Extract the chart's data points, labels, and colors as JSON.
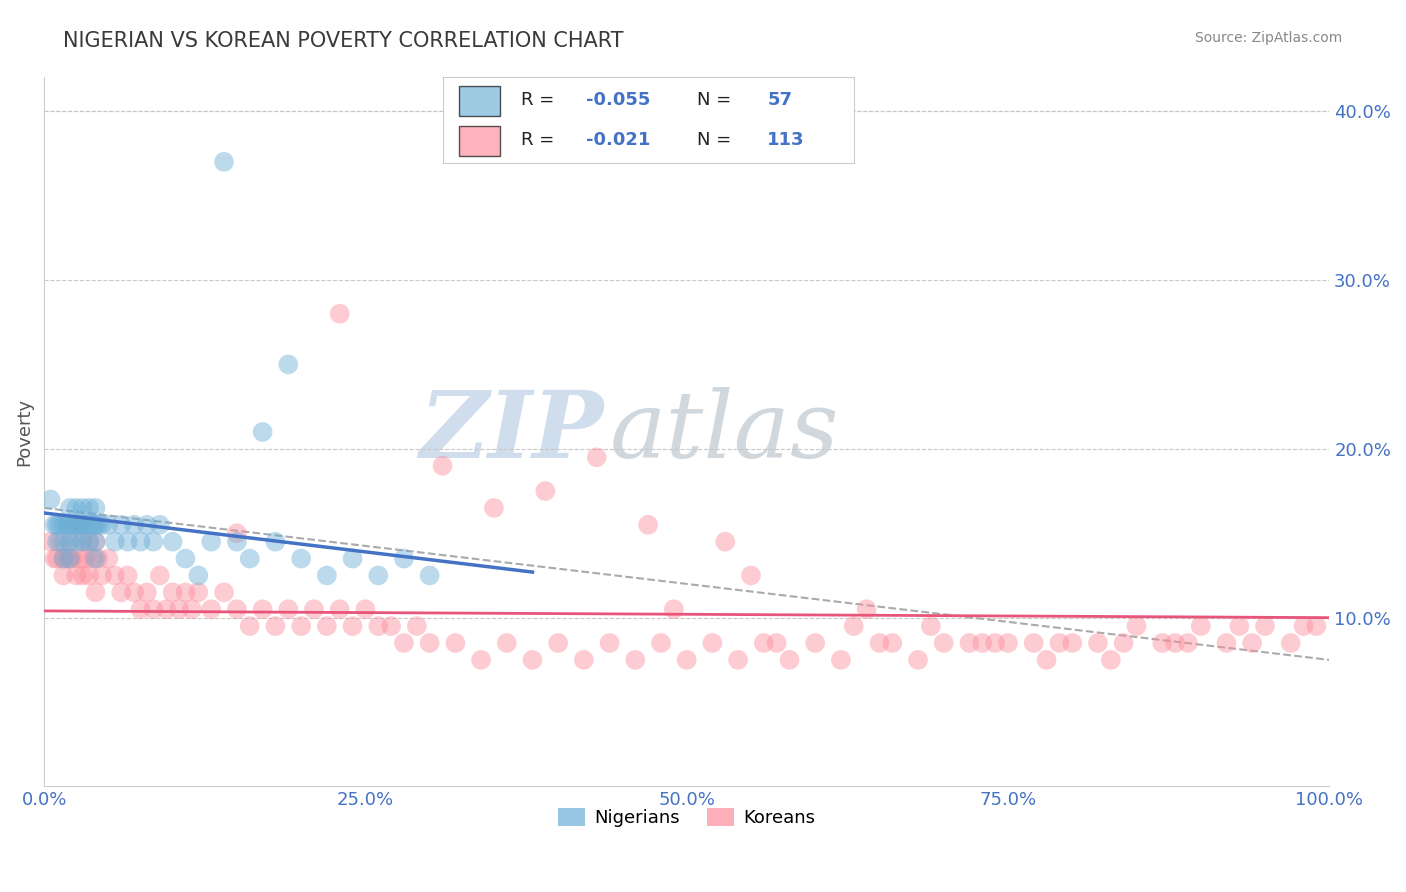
{
  "title": "NIGERIAN VS KOREAN POVERTY CORRELATION CHART",
  "source_text": "Source: ZipAtlas.com",
  "ylabel": "Poverty",
  "xlim": [
    0,
    1.0
  ],
  "ylim": [
    0.0,
    0.42
  ],
  "yticks": [
    0.1,
    0.2,
    0.3,
    0.4
  ],
  "ytick_labels": [
    "10.0%",
    "20.0%",
    "30.0%",
    "40.0%"
  ],
  "xticks": [
    0.0,
    0.25,
    0.5,
    0.75,
    1.0
  ],
  "xtick_labels": [
    "0.0%",
    "25.0%",
    "50.0%",
    "75.0%",
    "100.0%"
  ],
  "nigerian_color": "#6baed6",
  "korean_color": "#fc8d9c",
  "nigerian_R": -0.055,
  "nigerian_N": 57,
  "korean_R": -0.021,
  "korean_N": 113,
  "background_color": "#ffffff",
  "grid_color": "#c8c8c8",
  "watermark_zip": "ZIP",
  "watermark_atlas": "atlas",
  "nigerian_line_color": "#4472c4",
  "korean_line_color": "#e8557a",
  "dashed_line_color": "#aaaaaa",
  "tick_label_color": "#4472c4",
  "title_color": "#3a3a3a",
  "source_color": "#888888",
  "ylabel_color": "#555555",
  "nigerian_x": [
    0.005,
    0.008,
    0.01,
    0.01,
    0.012,
    0.015,
    0.015,
    0.015,
    0.018,
    0.02,
    0.02,
    0.02,
    0.02,
    0.022,
    0.025,
    0.025,
    0.025,
    0.028,
    0.03,
    0.03,
    0.03,
    0.032,
    0.035,
    0.035,
    0.035,
    0.038,
    0.04,
    0.04,
    0.04,
    0.04,
    0.042,
    0.045,
    0.05,
    0.055,
    0.06,
    0.065,
    0.07,
    0.075,
    0.08,
    0.085,
    0.09,
    0.1,
    0.11,
    0.12,
    0.13,
    0.15,
    0.16,
    0.18,
    0.2,
    0.22,
    0.24,
    0.26,
    0.28,
    0.3,
    0.14,
    0.19,
    0.17
  ],
  "nigerian_y": [
    0.17,
    0.155,
    0.155,
    0.145,
    0.155,
    0.155,
    0.145,
    0.135,
    0.155,
    0.165,
    0.155,
    0.145,
    0.135,
    0.155,
    0.165,
    0.155,
    0.145,
    0.155,
    0.165,
    0.155,
    0.145,
    0.155,
    0.165,
    0.155,
    0.145,
    0.155,
    0.165,
    0.155,
    0.145,
    0.135,
    0.155,
    0.155,
    0.155,
    0.145,
    0.155,
    0.145,
    0.155,
    0.145,
    0.155,
    0.145,
    0.155,
    0.145,
    0.135,
    0.125,
    0.145,
    0.145,
    0.135,
    0.145,
    0.135,
    0.125,
    0.135,
    0.125,
    0.135,
    0.125,
    0.37,
    0.25,
    0.21
  ],
  "korean_x": [
    0.005,
    0.008,
    0.01,
    0.012,
    0.015,
    0.015,
    0.018,
    0.02,
    0.02,
    0.022,
    0.025,
    0.025,
    0.028,
    0.03,
    0.03,
    0.032,
    0.035,
    0.035,
    0.038,
    0.04,
    0.04,
    0.042,
    0.045,
    0.05,
    0.055,
    0.06,
    0.065,
    0.07,
    0.075,
    0.08,
    0.085,
    0.09,
    0.095,
    0.1,
    0.105,
    0.11,
    0.115,
    0.12,
    0.13,
    0.14,
    0.15,
    0.16,
    0.17,
    0.18,
    0.19,
    0.2,
    0.21,
    0.22,
    0.23,
    0.24,
    0.25,
    0.26,
    0.27,
    0.28,
    0.29,
    0.3,
    0.32,
    0.34,
    0.36,
    0.38,
    0.4,
    0.42,
    0.44,
    0.46,
    0.48,
    0.5,
    0.52,
    0.54,
    0.56,
    0.58,
    0.6,
    0.62,
    0.65,
    0.68,
    0.7,
    0.72,
    0.75,
    0.78,
    0.8,
    0.82,
    0.85,
    0.87,
    0.9,
    0.92,
    0.95,
    0.97,
    0.99,
    0.35,
    0.47,
    0.53,
    0.39,
    0.55,
    0.43,
    0.64,
    0.69,
    0.73,
    0.77,
    0.83,
    0.88,
    0.93,
    0.23,
    0.31,
    0.15,
    0.49,
    0.57,
    0.63,
    0.66,
    0.74,
    0.79,
    0.84,
    0.89,
    0.94,
    0.98
  ],
  "korean_y": [
    0.145,
    0.135,
    0.135,
    0.145,
    0.135,
    0.125,
    0.135,
    0.145,
    0.135,
    0.135,
    0.155,
    0.125,
    0.135,
    0.145,
    0.125,
    0.135,
    0.145,
    0.125,
    0.135,
    0.145,
    0.115,
    0.135,
    0.125,
    0.135,
    0.125,
    0.115,
    0.125,
    0.115,
    0.105,
    0.115,
    0.105,
    0.125,
    0.105,
    0.115,
    0.105,
    0.115,
    0.105,
    0.115,
    0.105,
    0.115,
    0.105,
    0.095,
    0.105,
    0.095,
    0.105,
    0.095,
    0.105,
    0.095,
    0.105,
    0.095,
    0.105,
    0.095,
    0.095,
    0.085,
    0.095,
    0.085,
    0.085,
    0.075,
    0.085,
    0.075,
    0.085,
    0.075,
    0.085,
    0.075,
    0.085,
    0.075,
    0.085,
    0.075,
    0.085,
    0.075,
    0.085,
    0.075,
    0.085,
    0.075,
    0.085,
    0.085,
    0.085,
    0.075,
    0.085,
    0.085,
    0.095,
    0.085,
    0.095,
    0.085,
    0.095,
    0.085,
    0.095,
    0.165,
    0.155,
    0.145,
    0.175,
    0.125,
    0.195,
    0.105,
    0.095,
    0.085,
    0.085,
    0.075,
    0.085,
    0.095,
    0.28,
    0.19,
    0.15,
    0.105,
    0.085,
    0.095,
    0.085,
    0.085,
    0.085,
    0.085,
    0.085,
    0.085,
    0.095
  ]
}
